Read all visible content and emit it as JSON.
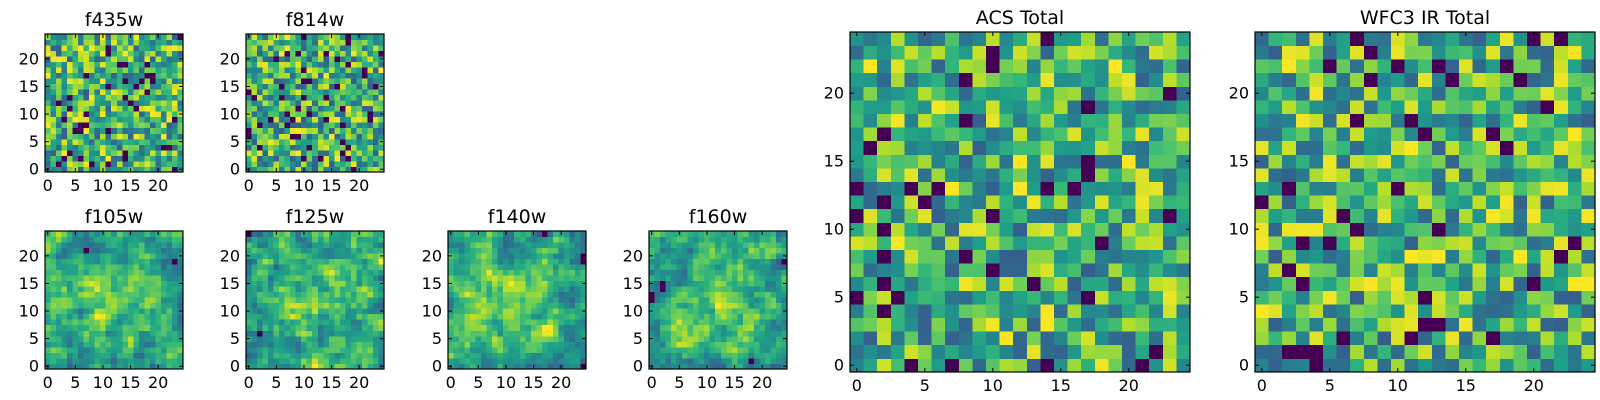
{
  "chart_data": [
    {
      "type": "heatmap",
      "title": "f435w",
      "seed": 11,
      "smooth": 0,
      "cmap": "viridis",
      "xticks": [
        "0",
        "5",
        "10",
        "15",
        "20"
      ],
      "yticks": [
        "0",
        "5",
        "10",
        "15",
        "20"
      ],
      "xlim": [
        -0.5,
        24.5
      ],
      "ylim": [
        -0.5,
        24.5
      ],
      "grid": false
    },
    {
      "type": "heatmap",
      "title": "f814w",
      "seed": 23,
      "smooth": 0,
      "cmap": "viridis",
      "xticks": [
        "0",
        "5",
        "10",
        "15",
        "20"
      ],
      "yticks": [
        "0",
        "5",
        "10",
        "15",
        "20"
      ],
      "xlim": [
        -0.5,
        24.5
      ],
      "ylim": [
        -0.5,
        24.5
      ],
      "grid": false
    },
    {
      "type": "heatmap",
      "title": "f105w",
      "seed": 37,
      "smooth": 1,
      "cmap": "viridis",
      "xticks": [
        "0",
        "5",
        "10",
        "15",
        "20"
      ],
      "yticks": [
        "0",
        "5",
        "10",
        "15",
        "20"
      ],
      "xlim": [
        -0.5,
        24.5
      ],
      "ylim": [
        -0.5,
        24.5
      ],
      "grid": false
    },
    {
      "type": "heatmap",
      "title": "f125w",
      "seed": 41,
      "smooth": 1,
      "cmap": "viridis",
      "xticks": [
        "0",
        "5",
        "10",
        "15",
        "20"
      ],
      "yticks": [
        "0",
        "5",
        "10",
        "15",
        "20"
      ],
      "xlim": [
        -0.5,
        24.5
      ],
      "ylim": [
        -0.5,
        24.5
      ],
      "grid": false
    },
    {
      "type": "heatmap",
      "title": "f140w",
      "seed": 53,
      "smooth": 1,
      "cmap": "viridis",
      "xticks": [
        "0",
        "5",
        "10",
        "15",
        "20"
      ],
      "yticks": [
        "0",
        "5",
        "10",
        "15",
        "20"
      ],
      "xlim": [
        -0.5,
        24.5
      ],
      "ylim": [
        -0.5,
        24.5
      ],
      "grid": false
    },
    {
      "type": "heatmap",
      "title": "f160w",
      "seed": 67,
      "smooth": 1,
      "cmap": "viridis",
      "xticks": [
        "0",
        "5",
        "10",
        "15",
        "20"
      ],
      "yticks": [
        "0",
        "5",
        "10",
        "15",
        "20"
      ],
      "xlim": [
        -0.5,
        24.5
      ],
      "ylim": [
        -0.5,
        24.5
      ],
      "grid": false
    },
    {
      "type": "heatmap",
      "title": "ACS Total",
      "seed": 79,
      "smooth": 0,
      "cmap": "viridis",
      "xticks": [
        "0",
        "5",
        "10",
        "15",
        "20"
      ],
      "yticks": [
        "0",
        "5",
        "10",
        "15",
        "20"
      ],
      "xlim": [
        -0.5,
        24.5
      ],
      "ylim": [
        -0.5,
        24.5
      ],
      "grid": false
    },
    {
      "type": "heatmap",
      "title": "WFC3 IR Total",
      "seed": 97,
      "smooth": 0,
      "cmap": "viridis",
      "xticks": [
        "0",
        "5",
        "10",
        "15",
        "20"
      ],
      "yticks": [
        "0",
        "5",
        "10",
        "15",
        "20"
      ],
      "xlim": [
        -0.5,
        24.5
      ],
      "ylim": [
        -0.5,
        24.5
      ],
      "grid": false
    }
  ]
}
